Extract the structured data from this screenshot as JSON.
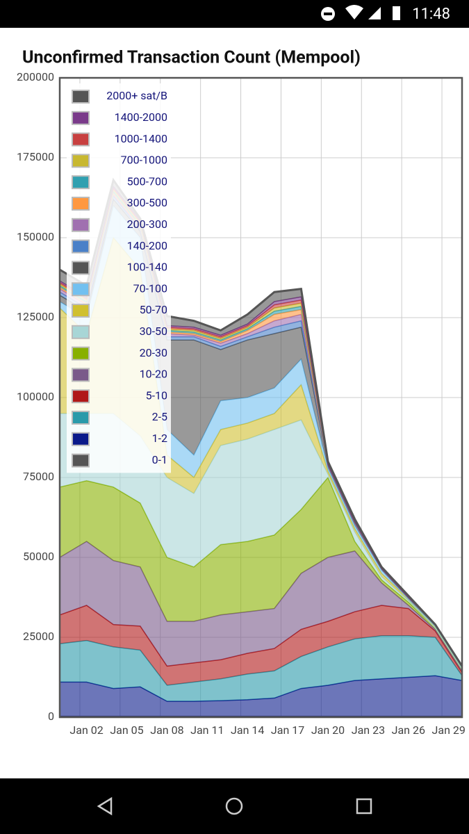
{
  "status_bar": {
    "time": "11:48"
  },
  "chart_data": {
    "type": "stacked-area",
    "title": "Unconfirmed Transaction Count (Mempool)",
    "x": [
      "Dec 31",
      "Jan 02",
      "Jan 04",
      "Jan 06",
      "Jan 08",
      "Jan 10",
      "Jan 12",
      "Jan 14",
      "Jan 16",
      "Jan 18",
      "Jan 20",
      "Jan 22",
      "Jan 24",
      "Jan 26",
      "Jan 28",
      "Jan 30"
    ],
    "xlim": [
      "Dec 31",
      "Jan 30"
    ],
    "xticks": [
      "Jan 02",
      "Jan 05",
      "Jan 08",
      "Jan 11",
      "Jan 14",
      "Jan 17",
      "Jan 20",
      "Jan 23",
      "Jan 26",
      "Jan 29"
    ],
    "ylim": [
      0,
      200000
    ],
    "yticks": [
      0,
      25000,
      50000,
      75000,
      100000,
      125000,
      150000,
      175000,
      200000
    ],
    "grid": true,
    "legend": "upper left",
    "series": [
      {
        "name": "0-1",
        "color": "#555555",
        "values": [
          300,
          300,
          300,
          300,
          300,
          300,
          300,
          300,
          300,
          300,
          300,
          300,
          300,
          300,
          300,
          300
        ]
      },
      {
        "name": "1-2",
        "color": "#0a1a8a",
        "values": [
          10700,
          10700,
          8700,
          9200,
          4700,
          4700,
          4900,
          5200,
          5700,
          8700,
          9700,
          11200,
          11700,
          12200,
          12700,
          11200
        ]
      },
      {
        "name": "2-5",
        "color": "#2a9aaa",
        "values": [
          12000,
          13000,
          13000,
          11500,
          5000,
          6000,
          6800,
          8000,
          8500,
          10000,
          12000,
          13000,
          13500,
          13000,
          12000,
          1500
        ]
      },
      {
        "name": "5-10",
        "color": "#b01818",
        "values": [
          9000,
          11000,
          7000,
          7500,
          6000,
          6000,
          6000,
          6500,
          7000,
          8500,
          8000,
          8500,
          9500,
          8500,
          2000,
          1000
        ]
      },
      {
        "name": "10-20",
        "color": "#7a5a8a",
        "values": [
          18000,
          20000,
          20000,
          18500,
          14000,
          13000,
          14000,
          13000,
          12500,
          17500,
          20000,
          19000,
          7000,
          1000,
          500,
          500
        ]
      },
      {
        "name": "20-30",
        "color": "#88b000",
        "values": [
          22000,
          19000,
          23000,
          20000,
          20000,
          17000,
          22000,
          22000,
          23000,
          20000,
          25000,
          3000,
          1000,
          1000,
          500,
          500
        ]
      },
      {
        "name": "30-50",
        "color": "#a8d6d6",
        "values": [
          23000,
          21000,
          23000,
          21000,
          25000,
          23000,
          31000,
          32000,
          33000,
          28000,
          1000,
          3000,
          1000,
          500,
          0,
          0
        ]
      },
      {
        "name": "50-70",
        "color": "#d0c030",
        "values": [
          33000,
          25000,
          55000,
          52000,
          7000,
          5000,
          5000,
          5000,
          5000,
          11000,
          1000,
          1000,
          1000,
          500,
          500,
          500
        ]
      },
      {
        "name": "70-100",
        "color": "#72c0f0",
        "values": [
          2000,
          5000,
          10000,
          10000,
          8000,
          7000,
          9000,
          8000,
          8000,
          8000,
          1000,
          1000,
          1000,
          0,
          0,
          0
        ]
      },
      {
        "name": "100-140",
        "color": "#555555",
        "values": [
          2000,
          2000,
          2000,
          2000,
          28000,
          36000,
          16000,
          18000,
          17000,
          10000,
          1000,
          1000,
          500,
          500,
          500,
          500
        ]
      },
      {
        "name": "140-200",
        "color": "#4a80c8",
        "values": [
          1000,
          1000,
          1000,
          500,
          1000,
          1000,
          1000,
          1000,
          2000,
          2000,
          0,
          0,
          0,
          0,
          0,
          0
        ]
      },
      {
        "name": "200-300",
        "color": "#a070b0",
        "values": [
          1000,
          1000,
          500,
          500,
          1000,
          500,
          1000,
          1000,
          2000,
          2000,
          0,
          0,
          0,
          0,
          0,
          0
        ]
      },
      {
        "name": "300-500",
        "color": "#ff9840",
        "values": [
          500,
          500,
          500,
          500,
          500,
          500,
          500,
          1000,
          2000,
          1500,
          0,
          0,
          0,
          0,
          0,
          0
        ]
      },
      {
        "name": "500-700",
        "color": "#30a0b0",
        "values": [
          500,
          500,
          500,
          500,
          500,
          500,
          500,
          500,
          1000,
          1000,
          0,
          0,
          0,
          0,
          0,
          0
        ]
      },
      {
        "name": "700-1000",
        "color": "#c8b830",
        "values": [
          500,
          500,
          500,
          500,
          500,
          500,
          500,
          500,
          1000,
          1000,
          0,
          0,
          0,
          0,
          0,
          0
        ]
      },
      {
        "name": "1000-1400",
        "color": "#c84040",
        "values": [
          500,
          500,
          500,
          500,
          500,
          500,
          500,
          500,
          1000,
          1000,
          0,
          0,
          0,
          0,
          0,
          0
        ]
      },
      {
        "name": "1400-2000",
        "color": "#7a3a8a",
        "values": [
          500,
          500,
          500,
          500,
          500,
          500,
          500,
          500,
          1000,
          1000,
          0,
          0,
          0,
          0,
          0,
          0
        ]
      },
      {
        "name": "2000+ sat/B",
        "color": "#555555",
        "values": [
          3500,
          3500,
          2000,
          500,
          3000,
          2000,
          1500,
          3000,
          3000,
          2500,
          1000,
          1000,
          500,
          500,
          0,
          0
        ]
      }
    ]
  }
}
